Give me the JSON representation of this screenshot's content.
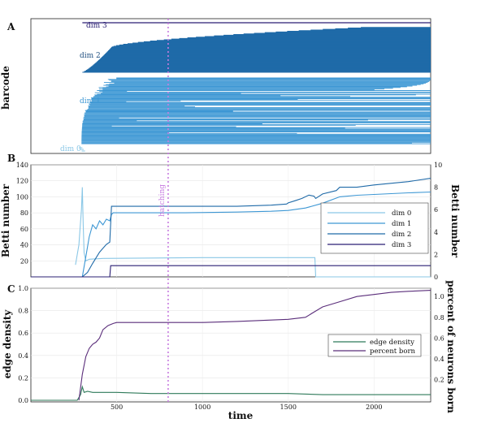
{
  "figure": {
    "panel_a": {
      "letter": "A",
      "ylabel": "barcode",
      "dim_labels": [
        "dim 3",
        "dim 2",
        "dim 1",
        "dim 0"
      ]
    },
    "panel_b": {
      "letter": "B",
      "ylabel_left": "Betti number",
      "ylabel_right": "Betti number",
      "annotation": "hatching",
      "legend": [
        "dim 0",
        "dim 1",
        "dim 2",
        "dim 3"
      ]
    },
    "panel_c": {
      "letter": "C",
      "ylabel_left": "edge density",
      "ylabel_right": "percent of neurons born",
      "xlabel": "time",
      "legend": [
        "edge density",
        "percent born"
      ]
    }
  },
  "colors": {
    "dim0": "#8ac7e6",
    "dim1": "#3d97d4",
    "dim2": "#1f6aa8",
    "dim3": "#2a1f73",
    "edge_density": "#2f7a5a",
    "percent_born": "#5a2d7a",
    "hatching": "#c77ce0"
  },
  "chart_data": [
    {
      "panel": "A",
      "type": "barcode",
      "xlim": [
        0,
        2330
      ],
      "hatching_x": 800,
      "groups": [
        {
          "name": "dim 3",
          "count": 1,
          "birth_range": [
            300,
            300
          ],
          "death": 2330
        },
        {
          "name": "dim 2",
          "count": 70,
          "birth_range": [
            300,
            470
          ],
          "death_range": [
            2330,
            2330
          ],
          "late_births_to": 2000
        },
        {
          "name": "dim 1",
          "count": 90,
          "birth_range": [
            295,
            550
          ],
          "death_range": [
            470,
            2330
          ]
        },
        {
          "name": "dim 0",
          "count": 3,
          "birth_range": [
            280,
            300
          ],
          "death_range": [
            300,
            320
          ]
        }
      ]
    },
    {
      "panel": "B",
      "type": "line",
      "xlim": [
        0,
        2330
      ],
      "ylim_left": [
        0,
        140
      ],
      "yticks_left": [
        20,
        40,
        60,
        80,
        100,
        120,
        140
      ],
      "ylim_right": [
        0,
        10
      ],
      "yticks_right": [
        0,
        2,
        4,
        6,
        8,
        10
      ],
      "series": [
        {
          "name": "dim 0",
          "axis": "left",
          "x": [
            260,
            280,
            295,
            300,
            305,
            310,
            320,
            340,
            420,
            1000,
            1655,
            1660,
            2330
          ],
          "y": [
            15,
            40,
            85,
            112,
            65,
            30,
            20,
            22,
            23,
            24,
            24,
            0,
            0
          ]
        },
        {
          "name": "dim 1",
          "axis": "left",
          "x": [
            300,
            320,
            340,
            360,
            380,
            400,
            420,
            440,
            460,
            470,
            480,
            600,
            900,
            1200,
            1400,
            1500,
            1600,
            1700,
            1800,
            1900,
            2000,
            2100,
            2200,
            2330
          ],
          "y": [
            0,
            25,
            50,
            65,
            60,
            70,
            65,
            72,
            70,
            78,
            80,
            80,
            80,
            81,
            82,
            83,
            86,
            92,
            100,
            102,
            103,
            104,
            105,
            106
          ]
        },
        {
          "name": "dim 2",
          "axis": "right",
          "x": [
            300,
            330,
            360,
            400,
            440,
            460,
            470,
            700,
            1200,
            1400,
            1490,
            1500,
            1540,
            1580,
            1620,
            1650,
            1660,
            1700,
            1780,
            1800,
            1900,
            2000,
            2200,
            2330
          ],
          "y": [
            0,
            0.4,
            1.2,
            2.2,
            2.9,
            3.1,
            6.3,
            6.3,
            6.3,
            6.4,
            6.5,
            6.6,
            6.8,
            7.0,
            7.3,
            7.2,
            7.0,
            7.4,
            7.7,
            8.0,
            8.0,
            8.2,
            8.5,
            8.8
          ]
        },
        {
          "name": "dim 3",
          "axis": "right",
          "x": [
            0,
            460,
            465,
            2330
          ],
          "y": [
            0,
            0,
            1,
            1
          ]
        }
      ]
    },
    {
      "panel": "C",
      "type": "line",
      "xlim": [
        0,
        2330
      ],
      "xticks": [
        500,
        1000,
        1500,
        2000
      ],
      "ylim_left": [
        0,
        1.0
      ],
      "yticks_left": [
        0.0,
        0.2,
        0.4,
        0.6,
        0.8,
        1.0
      ],
      "ylim_right": [
        0,
        1.08
      ],
      "yticks_right": [
        0.2,
        0.4,
        0.6,
        0.8,
        1.0
      ],
      "series": [
        {
          "name": "edge density",
          "axis": "left",
          "x": [
            0,
            270,
            290,
            300,
            310,
            330,
            360,
            400,
            500,
            700,
            1000,
            1500,
            1700,
            2000,
            2330
          ],
          "y": [
            0,
            0,
            0.05,
            0.12,
            0.07,
            0.08,
            0.07,
            0.07,
            0.07,
            0.06,
            0.06,
            0.06,
            0.05,
            0.05,
            0.05
          ]
        },
        {
          "name": "percent born",
          "axis": "right",
          "x": [
            280,
            300,
            320,
            340,
            360,
            380,
            400,
            420,
            450,
            480,
            500,
            700,
            1000,
            1200,
            1500,
            1600,
            1650,
            1700,
            1800,
            1900,
            2000,
            2100,
            2200,
            2330
          ],
          "y": [
            0.0,
            0.25,
            0.42,
            0.5,
            0.54,
            0.56,
            0.6,
            0.68,
            0.72,
            0.74,
            0.75,
            0.75,
            0.75,
            0.76,
            0.78,
            0.8,
            0.85,
            0.9,
            0.95,
            1.0,
            1.02,
            1.04,
            1.05,
            1.06
          ]
        }
      ]
    }
  ]
}
